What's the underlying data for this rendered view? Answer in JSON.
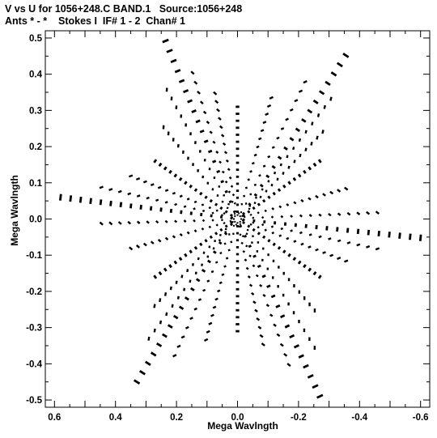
{
  "header": {
    "title_line1": "V vs U for 1056+248.C BAND.1   Source:1056+248",
    "title_line2": "Ants * - *    Stokes I  IF# 1 - 2  Chan# 1"
  },
  "chart_data": {
    "type": "scatter",
    "title": "V vs U for 1056+248.C BAND.1   Source:1056+248",
    "xlabel": "Mega Wavlngth",
    "ylabel": "Mega Wavlngth",
    "xlim": [
      0.63,
      -0.63
    ],
    "ylim": [
      -0.52,
      0.52
    ],
    "x_ticks": [
      0.6,
      0.4,
      0.2,
      0.0,
      -0.2,
      -0.4,
      -0.6
    ],
    "x_tick_labels": [
      "0.6",
      "0.4",
      "0.2",
      "0.0",
      "-0.2",
      "-0.4",
      "-0.6"
    ],
    "y_ticks": [
      0.5,
      0.4,
      0.3,
      0.2,
      0.1,
      0.0,
      -0.1,
      -0.2,
      -0.3,
      -0.4,
      -0.5
    ],
    "y_tick_labels": [
      "0.5",
      "0.4",
      "0.3",
      "0.2",
      "0.1",
      "0.0",
      "-0.1",
      "-0.2",
      "-0.3",
      "-0.4",
      "-0.5"
    ],
    "grid": false,
    "color": "#000000",
    "arms": [
      {
        "tip": [
          0.236,
          0.492
        ],
        "inner": [
          0.01,
          0.02
        ]
      },
      {
        "tip": [
          -0.355,
          0.452
        ],
        "inner": [
          -0.02,
          0.015
        ]
      },
      {
        "tip": [
          0.58,
          0.06
        ],
        "inner": [
          0.02,
          0.002
        ]
      },
      {
        "tip": [
          -0.6,
          -0.052
        ],
        "inner": [
          -0.02,
          -0.002
        ]
      },
      {
        "tip": [
          0.33,
          -0.45
        ],
        "inner": [
          0.02,
          -0.015
        ]
      },
      {
        "tip": [
          -0.27,
          -0.49
        ],
        "inner": [
          -0.01,
          -0.02
        ]
      }
    ],
    "spine_arms": [
      {
        "tip": [
          0.0,
          0.31
        ],
        "inner": [
          0.0,
          0.02
        ]
      },
      {
        "tip": [
          0.0,
          -0.31
        ],
        "inner": [
          0.0,
          -0.02
        ]
      },
      {
        "tip": [
          0.27,
          0.16
        ],
        "inner": [
          0.02,
          0.01
        ]
      },
      {
        "tip": [
          -0.27,
          0.16
        ],
        "inner": [
          -0.02,
          0.01
        ]
      },
      {
        "tip": [
          0.27,
          -0.16
        ],
        "inner": [
          0.02,
          -0.01
        ]
      },
      {
        "tip": [
          -0.27,
          -0.16
        ],
        "inner": [
          -0.02,
          -0.01
        ]
      }
    ],
    "points_per_arm": 18,
    "ring_count": 14,
    "note_units": "U increases to the left (reversed x axis)"
  }
}
